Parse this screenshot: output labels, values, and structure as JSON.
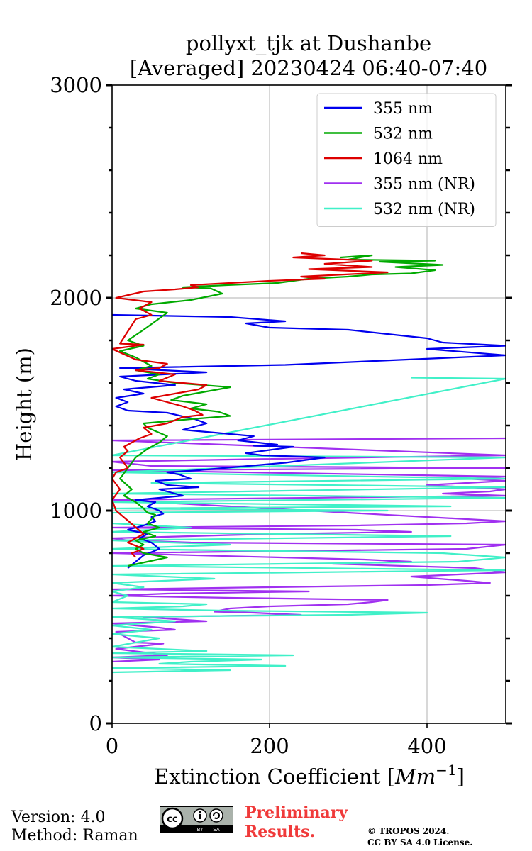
{
  "chart_data": {
    "type": "line",
    "title": "pollyxt_tjk at Dushanbe",
    "subtitle": "[Averaged] 20230424 06:40-07:40",
    "xlabel": "Extinction Coefficient",
    "xlabel_unit_base": "Mm",
    "xlabel_unit_exp": "−1",
    "ylabel": "Height (m)",
    "xlim": [
      0,
      500
    ],
    "ylim": [
      0,
      3000
    ],
    "x_ticks": [
      0,
      200,
      400
    ],
    "x_tick_labels": [
      "0",
      "200",
      "400"
    ],
    "y_ticks": [
      0,
      1000,
      2000,
      3000
    ],
    "y_tick_labels": [
      "0",
      "1000",
      "2000",
      "3000"
    ],
    "y_minor_ticks": [
      200,
      400,
      600,
      800,
      1200,
      1400,
      1600,
      1800,
      2200,
      2400,
      2600,
      2800
    ],
    "grid": true,
    "legend_position": "top-right",
    "series": [
      {
        "name": "355 nm",
        "color": "#0000ee",
        "points": [
          [
            20,
            730
          ],
          [
            30,
            760
          ],
          [
            40,
            790
          ],
          [
            60,
            820
          ],
          [
            50,
            850
          ],
          [
            35,
            870
          ],
          [
            45,
            890
          ],
          [
            20,
            910
          ],
          [
            40,
            930
          ],
          [
            55,
            950
          ],
          [
            50,
            970
          ],
          [
            65,
            985
          ],
          [
            60,
            1000
          ],
          [
            45,
            1020
          ],
          [
            55,
            1040
          ],
          [
            30,
            1050
          ],
          [
            60,
            1060
          ],
          [
            90,
            1070
          ],
          [
            80,
            1080
          ],
          [
            60,
            1100
          ],
          [
            110,
            1110
          ],
          [
            70,
            1120
          ],
          [
            55,
            1140
          ],
          [
            100,
            1150
          ],
          [
            85,
            1170
          ],
          [
            70,
            1180
          ],
          [
            110,
            1190
          ],
          [
            220,
            1225
          ],
          [
            270,
            1250
          ],
          [
            190,
            1260
          ],
          [
            170,
            1270
          ],
          [
            230,
            1300
          ],
          [
            180,
            1305
          ],
          [
            210,
            1310
          ],
          [
            160,
            1330
          ],
          [
            180,
            1350
          ],
          [
            90,
            1380
          ],
          [
            120,
            1410
          ],
          [
            105,
            1430
          ],
          [
            70,
            1460
          ],
          [
            20,
            1470
          ],
          [
            5,
            1490
          ],
          [
            20,
            1510
          ],
          [
            5,
            1530
          ],
          [
            40,
            1550
          ],
          [
            15,
            1570
          ],
          [
            80,
            1590
          ],
          [
            30,
            1610
          ],
          [
            10,
            1630
          ],
          [
            120,
            1650
          ],
          [
            10,
            1670
          ],
          [
            220,
            1685
          ],
          [
            500,
            1730
          ],
          [
            400,
            1760
          ],
          [
            500,
            1775
          ],
          [
            420,
            1790
          ],
          [
            400,
            1810
          ],
          [
            300,
            1850
          ],
          [
            200,
            1860
          ],
          [
            170,
            1880
          ],
          [
            220,
            1890
          ],
          [
            150,
            1910
          ],
          [
            0,
            1920
          ]
        ]
      },
      {
        "name": "532 nm",
        "color": "#00aa00",
        "points": [
          [
            20,
            740
          ],
          [
            45,
            760
          ],
          [
            70,
            780
          ],
          [
            40,
            800
          ],
          [
            30,
            820
          ],
          [
            40,
            840
          ],
          [
            30,
            860
          ],
          [
            55,
            880
          ],
          [
            40,
            900
          ],
          [
            60,
            920
          ],
          [
            45,
            940
          ],
          [
            50,
            960
          ],
          [
            55,
            980
          ],
          [
            45,
            990
          ],
          [
            40,
            1010
          ],
          [
            30,
            1040
          ],
          [
            15,
            1070
          ],
          [
            25,
            1100
          ],
          [
            10,
            1150
          ],
          [
            20,
            1200
          ],
          [
            30,
            1250
          ],
          [
            45,
            1290
          ],
          [
            60,
            1320
          ],
          [
            70,
            1350
          ],
          [
            45,
            1390
          ],
          [
            40,
            1410
          ],
          [
            100,
            1430
          ],
          [
            150,
            1445
          ],
          [
            135,
            1465
          ],
          [
            100,
            1480
          ],
          [
            120,
            1500
          ],
          [
            75,
            1520
          ],
          [
            90,
            1540
          ],
          [
            150,
            1580
          ],
          [
            80,
            1600
          ],
          [
            45,
            1620
          ],
          [
            60,
            1640
          ],
          [
            30,
            1660
          ],
          [
            50,
            1680
          ],
          [
            40,
            1700
          ],
          [
            30,
            1720
          ],
          [
            10,
            1750
          ],
          [
            40,
            1775
          ],
          [
            20,
            1800
          ],
          [
            40,
            1850
          ],
          [
            70,
            1930
          ],
          [
            30,
            1950
          ],
          [
            50,
            1970
          ],
          [
            100,
            1990
          ],
          [
            140,
            2020
          ],
          [
            125,
            2045
          ],
          [
            90,
            2050
          ],
          [
            145,
            2060
          ],
          [
            210,
            2070
          ],
          [
            250,
            2090
          ],
          [
            300,
            2100
          ],
          [
            330,
            2110
          ],
          [
            380,
            2115
          ],
          [
            410,
            2130
          ],
          [
            360,
            2145
          ],
          [
            420,
            2155
          ],
          [
            340,
            2170
          ],
          [
            410,
            2175
          ],
          [
            300,
            2180
          ],
          [
            330,
            2200
          ],
          [
            290,
            2190
          ]
        ]
      },
      {
        "name": "1064 nm",
        "color": "#dd0000",
        "points": [
          [
            30,
            780
          ],
          [
            25,
            800
          ],
          [
            40,
            820
          ],
          [
            20,
            850
          ],
          [
            30,
            870
          ],
          [
            40,
            890
          ],
          [
            5,
            1000
          ],
          [
            0,
            1050
          ],
          [
            10,
            1100
          ],
          [
            0,
            1150
          ],
          [
            5,
            1180
          ],
          [
            20,
            1200
          ],
          [
            10,
            1250
          ],
          [
            20,
            1280
          ],
          [
            15,
            1300
          ],
          [
            35,
            1340
          ],
          [
            50,
            1360
          ],
          [
            40,
            1390
          ],
          [
            70,
            1410
          ],
          [
            90,
            1440
          ],
          [
            115,
            1450
          ],
          [
            105,
            1470
          ],
          [
            90,
            1490
          ],
          [
            70,
            1510
          ],
          [
            50,
            1530
          ],
          [
            80,
            1550
          ],
          [
            110,
            1570
          ],
          [
            120,
            1590
          ],
          [
            60,
            1610
          ],
          [
            80,
            1640
          ],
          [
            30,
            1660
          ],
          [
            60,
            1670
          ],
          [
            70,
            1690
          ],
          [
            30,
            1710
          ],
          [
            0,
            1760
          ],
          [
            40,
            1780
          ],
          [
            10,
            1785
          ],
          [
            30,
            1900
          ],
          [
            50,
            1920
          ],
          [
            35,
            1950
          ],
          [
            50,
            1980
          ],
          [
            5,
            2000
          ],
          [
            40,
            2030
          ],
          [
            80,
            2040
          ],
          [
            110,
            2050
          ],
          [
            100,
            2060
          ],
          [
            150,
            2070
          ],
          [
            200,
            2080
          ],
          [
            270,
            2090
          ],
          [
            240,
            2100
          ],
          [
            350,
            2120
          ],
          [
            250,
            2135
          ],
          [
            330,
            2145
          ],
          [
            270,
            2160
          ],
          [
            330,
            2175
          ],
          [
            230,
            2190
          ],
          [
            270,
            2200
          ],
          [
            240,
            2210
          ]
        ]
      },
      {
        "name": "355 nm (NR)",
        "color": "#a030f0",
        "points": [
          [
            0,
            290
          ],
          [
            60,
            300
          ],
          [
            0,
            310
          ],
          [
            70,
            320
          ],
          [
            5,
            350
          ],
          [
            65,
            375
          ],
          [
            30,
            380
          ],
          [
            5,
            430
          ],
          [
            80,
            440
          ],
          [
            60,
            450
          ],
          [
            0,
            470
          ],
          [
            120,
            480
          ],
          [
            40,
            500
          ],
          [
            240,
            510
          ],
          [
            180,
            520
          ],
          [
            130,
            525
          ],
          [
            150,
            540
          ],
          [
            200,
            550
          ],
          [
            300,
            560
          ],
          [
            330,
            570
          ],
          [
            350,
            580
          ],
          [
            150,
            590
          ],
          [
            0,
            600
          ],
          [
            70,
            610
          ],
          [
            250,
            620
          ],
          [
            0,
            630
          ],
          [
            200,
            640
          ],
          [
            400,
            650
          ],
          [
            480,
            660
          ],
          [
            450,
            670
          ],
          [
            380,
            690
          ],
          [
            500,
            710
          ],
          [
            460,
            730
          ],
          [
            280,
            750
          ],
          [
            380,
            760
          ],
          [
            320,
            770
          ],
          [
            0,
            800
          ],
          [
            450,
            820
          ],
          [
            500,
            840
          ],
          [
            100,
            850
          ],
          [
            20,
            860
          ],
          [
            0,
            870
          ],
          [
            100,
            880
          ],
          [
            200,
            890
          ],
          [
            380,
            900
          ],
          [
            310,
            910
          ],
          [
            0,
            920
          ],
          [
            310,
            930
          ],
          [
            450,
            940
          ],
          [
            500,
            950
          ],
          [
            0,
            1050
          ],
          [
            500,
            1070
          ],
          [
            420,
            1080
          ],
          [
            480,
            1090
          ],
          [
            500,
            1100
          ],
          [
            400,
            1120
          ],
          [
            500,
            1140
          ],
          [
            450,
            1150
          ],
          [
            500,
            1160
          ],
          [
            0,
            1190
          ],
          [
            500,
            1200
          ],
          [
            50,
            1210
          ],
          [
            0,
            1230
          ],
          [
            150,
            1240
          ],
          [
            500,
            1260
          ],
          [
            0,
            1330
          ],
          [
            500,
            1340
          ]
        ]
      },
      {
        "name": "532 nm (NR)",
        "color": "#40f0c8",
        "points": [
          [
            0,
            240
          ],
          [
            150,
            250
          ],
          [
            0,
            260
          ],
          [
            220,
            270
          ],
          [
            60,
            280
          ],
          [
            100,
            290
          ],
          [
            190,
            300
          ],
          [
            0,
            310
          ],
          [
            230,
            320
          ],
          [
            0,
            330
          ],
          [
            120,
            340
          ],
          [
            0,
            360
          ],
          [
            60,
            400
          ],
          [
            0,
            420
          ],
          [
            50,
            440
          ],
          [
            0,
            460
          ],
          [
            80,
            480
          ],
          [
            0,
            500
          ],
          [
            300,
            510
          ],
          [
            400,
            520
          ],
          [
            140,
            530
          ],
          [
            0,
            540
          ],
          [
            90,
            550
          ],
          [
            120,
            560
          ],
          [
            0,
            570
          ],
          [
            20,
            600
          ],
          [
            0,
            620
          ],
          [
            40,
            640
          ],
          [
            0,
            660
          ],
          [
            130,
            680
          ],
          [
            0,
            700
          ],
          [
            500,
            720
          ],
          [
            0,
            740
          ],
          [
            440,
            760
          ],
          [
            500,
            780
          ],
          [
            420,
            800
          ],
          [
            0,
            820
          ],
          [
            150,
            840
          ],
          [
            0,
            860
          ],
          [
            430,
            880
          ],
          [
            0,
            900
          ],
          [
            100,
            920
          ],
          [
            0,
            940
          ],
          [
            0,
            990
          ],
          [
            350,
            1000
          ],
          [
            0,
            1010
          ],
          [
            430,
            1020
          ],
          [
            0,
            1040
          ],
          [
            500,
            1060
          ],
          [
            0,
            1080
          ],
          [
            500,
            1110
          ],
          [
            50,
            1130
          ],
          [
            500,
            1150
          ],
          [
            0,
            1180
          ],
          [
            500,
            1250
          ],
          [
            0,
            1260
          ],
          [
            500,
            1620
          ],
          [
            380,
            1625
          ]
        ]
      }
    ]
  },
  "footer": {
    "version": "Version: 4.0",
    "method": "Method: Raman",
    "preliminary_line1": "Preliminary",
    "preliminary_line2": "Results.",
    "copyright": "© TROPOS 2024.",
    "license": "CC BY SA 4.0 License.",
    "badge_by": "BY",
    "badge_sa": "SA"
  }
}
